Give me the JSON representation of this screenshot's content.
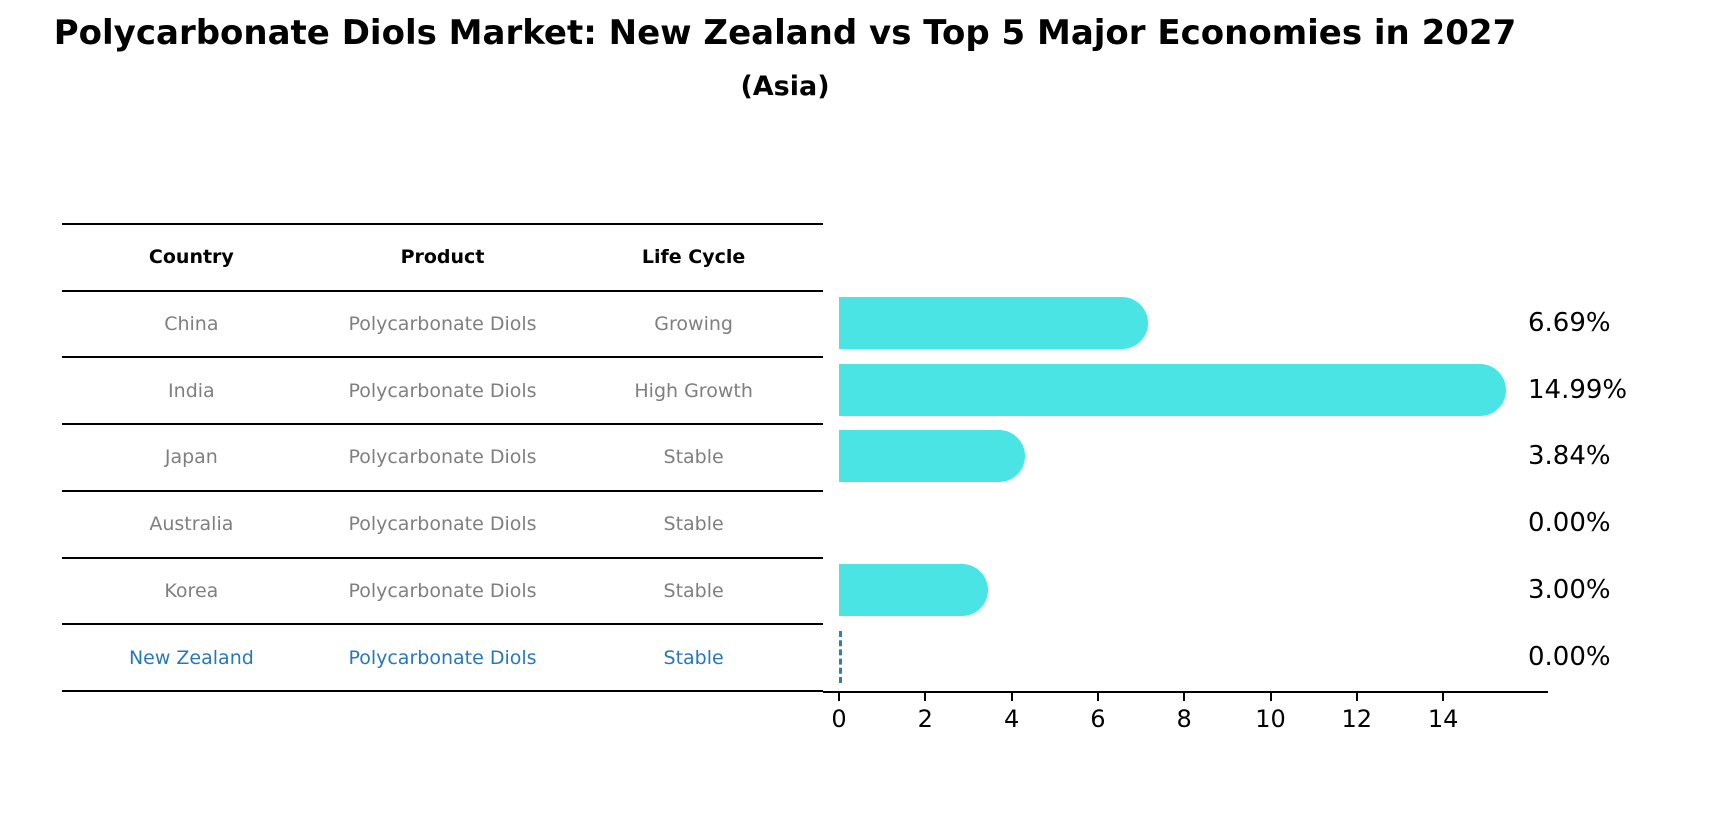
{
  "title": "Polycarbonate Diols Market: New Zealand vs Top 5 Major Economies in 2027",
  "subtitle": "(Asia)",
  "table": {
    "headers": [
      "Country",
      "Product",
      "Life Cycle"
    ],
    "rows": [
      {
        "country": "China",
        "product": "Polycarbonate Diols",
        "life_cycle": "Growing",
        "value": 6.69,
        "value_label": "6.69%",
        "highlight": false
      },
      {
        "country": "India",
        "product": "Polycarbonate Diols",
        "life_cycle": "High Growth",
        "value": 14.99,
        "value_label": "14.99%",
        "highlight": false
      },
      {
        "country": "Japan",
        "product": "Polycarbonate Diols",
        "life_cycle": "Stable",
        "value": 3.84,
        "value_label": "3.84%",
        "highlight": false
      },
      {
        "country": "Australia",
        "product": "Polycarbonate Diols",
        "life_cycle": "Stable",
        "value": 0.0,
        "value_label": "0.00%",
        "highlight": false
      },
      {
        "country": "Korea",
        "product": "Polycarbonate Diols",
        "life_cycle": "Stable",
        "value": 3.0,
        "value_label": "3.00%",
        "highlight": false
      },
      {
        "country": "New Zealand",
        "product": "Polycarbonate Diols",
        "life_cycle": "Stable",
        "value": 0.0,
        "value_label": "0.00%",
        "highlight": true
      }
    ]
  },
  "chart_data": {
    "type": "bar",
    "orientation": "horizontal",
    "title": "Polycarbonate Diols Market: New Zealand vs Top 5 Major Economies in 2027",
    "subtitle": "(Asia)",
    "categories": [
      "China",
      "India",
      "Japan",
      "Australia",
      "Korea",
      "New Zealand"
    ],
    "values": [
      6.69,
      14.99,
      3.84,
      0.0,
      3.0,
      0.0
    ],
    "value_labels": [
      "6.69%",
      "14.99%",
      "3.84%",
      "0.00%",
      "3.00%",
      "0.00%"
    ],
    "xlabel": "",
    "ylabel": "",
    "x_ticks": [
      0,
      2,
      4,
      6,
      8,
      10,
      12,
      14
    ],
    "xlim": [
      -0.4,
      16.4
    ],
    "grid": false,
    "legend": false,
    "highlight_category": "New Zealand",
    "highlight_marker": "dashed-line-at-zero"
  },
  "colors": {
    "bar": "#4be4e4",
    "highlight_text": "#2878b9",
    "highlight_dash": "#2d7fb8",
    "row_text": "#7f7f7f",
    "header_text": "#000000",
    "axis": "#000000",
    "background": "#ffffff"
  }
}
